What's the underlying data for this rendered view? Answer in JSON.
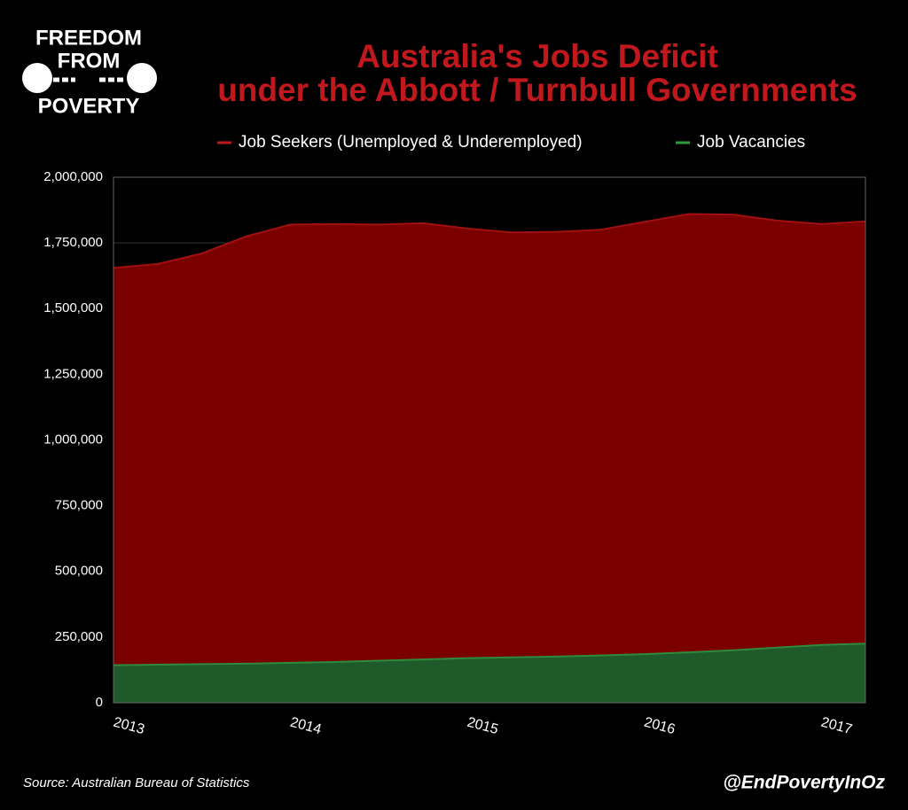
{
  "logo": {
    "lines": [
      "FREEDOM",
      "FROM",
      "POVERTY"
    ]
  },
  "chart_data": {
    "type": "area",
    "title": [
      "Australia's Jobs Deficit",
      "under the Abbott / Turnbull Governments"
    ],
    "categories": [
      "2013",
      null,
      null,
      null,
      "2014",
      null,
      null,
      null,
      "2015",
      null,
      null,
      null,
      "2016",
      null,
      null,
      null,
      "2017",
      null
    ],
    "series": [
      {
        "name": "Job Seekers (Unemployed & Underemployed)",
        "color": "#7a0000",
        "values": [
          1655000,
          1670000,
          1710000,
          1775000,
          1820000,
          1822000,
          1820000,
          1825000,
          1805000,
          1790000,
          1792000,
          1800000,
          1830000,
          1860000,
          1858000,
          1835000,
          1822000,
          1832000
        ]
      },
      {
        "name": "Job Vacancies",
        "color": "#1f5a2a",
        "values": [
          143000,
          145000,
          147000,
          149000,
          152000,
          155000,
          160000,
          165000,
          170000,
          173000,
          176000,
          180000,
          185000,
          192000,
          200000,
          210000,
          220000,
          225000
        ]
      }
    ],
    "ylim": [
      0,
      2000000
    ],
    "yticks": [
      0,
      {
        "value": 250000,
        "label": "250,000"
      },
      {
        "value": 500000,
        "label": "500,000"
      },
      {
        "value": 750000,
        "label": "750,000"
      },
      {
        "value": 1000000,
        "label": "1,000,000"
      },
      {
        "value": 1250000,
        "label": "1,250,000"
      },
      {
        "value": 1500000,
        "label": "1,500,000"
      },
      {
        "value": 1750000,
        "label": "1,750,000"
      },
      {
        "value": 2000000,
        "label": "2,000,000"
      }
    ],
    "grid": true,
    "legend": "top",
    "source": "Source: Australian Bureau of Statistics",
    "handle": "@EndPovertyInOz"
  }
}
